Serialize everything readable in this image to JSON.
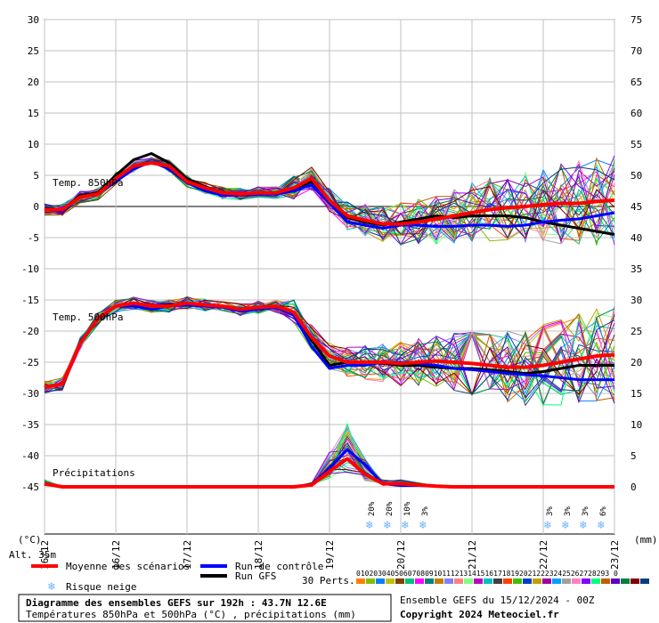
{
  "chart_data": {
    "type": "line",
    "left_axis_ticks": [
      30,
      25,
      20,
      15,
      10,
      5,
      0,
      -5,
      -10,
      -15,
      -20,
      -25,
      -30,
      -35,
      -40,
      -45
    ],
    "right_axis_ticks": [
      75,
      70,
      65,
      60,
      55,
      50,
      45,
      40,
      35,
      30,
      25,
      20,
      15,
      10,
      5,
      0
    ],
    "x_labels": [
      "16/12",
      "16/12",
      "17/12",
      "18/12",
      "19/12",
      "20/12",
      "21/12",
      "22/12",
      "23/12"
    ],
    "x_axis_unit_left": "(°C)",
    "x_axis_unit_right": "(mm)",
    "section_labels": {
      "t850": "Temp. 850hPa",
      "t500": "Temp. 500hPa",
      "precip": "Précipitations"
    },
    "altitude_label": "Alt. 35m",
    "x_hours": [
      0,
      6,
      12,
      18,
      24,
      30,
      36,
      42,
      48,
      54,
      60,
      66,
      72,
      78,
      84,
      90,
      96,
      102,
      108,
      114,
      120,
      126,
      132,
      138,
      144,
      150,
      156,
      162,
      168,
      174,
      180,
      186,
      192
    ],
    "series": {
      "t850_mean": [
        -0.5,
        -0.5,
        1.5,
        2.0,
        4.5,
        6.5,
        7.0,
        6.5,
        4.0,
        3.0,
        2.2,
        2.0,
        2.2,
        2.2,
        3.0,
        4.5,
        1.0,
        -1.5,
        -2.2,
        -2.8,
        -2.8,
        -2.5,
        -2.0,
        -1.5,
        -1.0,
        -0.5,
        -0.2,
        0.0,
        0.3,
        0.5,
        0.5,
        0.8,
        1.0
      ],
      "t850_control": [
        -0.5,
        -0.8,
        1.5,
        2.0,
        4.0,
        6.0,
        7.2,
        6.0,
        3.8,
        2.5,
        1.8,
        1.8,
        2.0,
        2.0,
        2.5,
        3.5,
        0.5,
        -2.5,
        -3.0,
        -3.5,
        -3.0,
        -3.0,
        -3.2,
        -3.2,
        -3.0,
        -3.0,
        -3.2,
        -3.0,
        -2.5,
        -2.2,
        -2.0,
        -1.5,
        -1.0
      ],
      "t850_gfs": [
        -0.3,
        -0.5,
        1.8,
        2.2,
        5.0,
        7.5,
        8.5,
        7.0,
        4.5,
        3.2,
        2.2,
        2.0,
        2.2,
        2.2,
        2.8,
        4.0,
        1.0,
        -1.8,
        -2.5,
        -3.0,
        -2.5,
        -2.0,
        -1.5,
        -1.8,
        -1.5,
        -1.5,
        -1.5,
        -1.8,
        -2.5,
        -3.0,
        -3.5,
        -4.0,
        -4.5
      ],
      "t500_mean": [
        -29,
        -28.5,
        -22,
        -18,
        -16,
        -15.5,
        -16,
        -16,
        -15.5,
        -15.8,
        -16,
        -16.5,
        -16.2,
        -16,
        -17,
        -21,
        -24,
        -25,
        -25,
        -25,
        -25.2,
        -25,
        -24.8,
        -25,
        -25.2,
        -25.5,
        -25.8,
        -25.8,
        -25.5,
        -25,
        -24.5,
        -24,
        -23.8
      ],
      "t500_control": [
        -29,
        -28.5,
        -22,
        -18,
        -16,
        -16,
        -16.5,
        -16,
        -15.8,
        -16,
        -16.2,
        -16.8,
        -16.5,
        -16.2,
        -17.5,
        -22.5,
        -26,
        -25.5,
        -25.5,
        -25,
        -25,
        -25.2,
        -25.5,
        -26,
        -26.2,
        -26.5,
        -26.8,
        -27,
        -27.2,
        -27.5,
        -27.8,
        -27.8,
        -27.8
      ],
      "t500_gfs": [
        -29,
        -28.5,
        -22,
        -18,
        -16,
        -15.5,
        -16,
        -15.8,
        -15.5,
        -15.8,
        -16,
        -16.5,
        -16.2,
        -16,
        -17,
        -21.5,
        -25.5,
        -25,
        -25,
        -25.2,
        -25.5,
        -25.5,
        -25.8,
        -26,
        -26,
        -26.2,
        -26.5,
        -26.8,
        -26.5,
        -26,
        -25.5,
        -25.5,
        -25.5
      ],
      "precip_mean": [
        0.5,
        0,
        0,
        0,
        0,
        0,
        0,
        0,
        0,
        0,
        0,
        0,
        0,
        0,
        0,
        0.3,
        2.5,
        4.5,
        2.0,
        0.5,
        0.5,
        0.3,
        0.1,
        0,
        0,
        0,
        0,
        0,
        0,
        0,
        0,
        0,
        0
      ],
      "precip_control": [
        0.5,
        0,
        0,
        0,
        0,
        0,
        0,
        0,
        0,
        0,
        0,
        0,
        0,
        0,
        0,
        0.3,
        3.0,
        6.0,
        3.5,
        0.5,
        0.2,
        0.2,
        0.1,
        0,
        0,
        0,
        0,
        0,
        0,
        0,
        0,
        0,
        0
      ]
    },
    "snow_risk": [
      {
        "hour": 108,
        "label": "20%"
      },
      {
        "hour": 114,
        "label": "20%"
      },
      {
        "hour": 120,
        "label": "10%"
      },
      {
        "hour": 126,
        "label": "3%"
      },
      {
        "hour": 168,
        "label": "3%"
      },
      {
        "hour": 174,
        "label": "3%"
      },
      {
        "hour": 180,
        "label": "3%"
      },
      {
        "hour": 186,
        "label": "6%"
      }
    ],
    "legend": {
      "mean": "Moyenne des scénarios",
      "control": "Run de contrôle",
      "gfs": "Run GFS",
      "snow": "Risque neige",
      "perts_label": "30 Perts.",
      "perts_numbers": "01020304050607080910111213141516171819202122232425262728293 0"
    },
    "colors": {
      "mean": "#ff0000",
      "control": "#0000ff",
      "gfs": "#000000",
      "grid": "#c0c0c0",
      "snow": "#66b3ff"
    },
    "pert_colors": [
      "#ff8000",
      "#80c000",
      "#0080ff",
      "#c0c000",
      "#804000",
      "#00c080",
      "#ff00ff",
      "#008080",
      "#c08000",
      "#8080ff",
      "#ff8080",
      "#80ff80",
      "#c000c0",
      "#00c0c0",
      "#404040",
      "#ff4000",
      "#40c000",
      "#0040c0",
      "#c0a000",
      "#a000a0",
      "#00a0ff",
      "#a0a0a0",
      "#ff80c0",
      "#8000ff",
      "#00ff80",
      "#c06000",
      "#6000c0",
      "#008040",
      "#800000",
      "#004080"
    ]
  },
  "footer": {
    "title": "Diagramme des ensembles GEFS sur 192h : 43.7N 12.6E",
    "subtitle": "Températures 850hPa et 500hPa (°C) , précipitations (mm)",
    "run": "Ensemble GEFS du 15/12/2024 - 00Z",
    "copyright": "Copyright 2024 Meteociel.fr"
  }
}
